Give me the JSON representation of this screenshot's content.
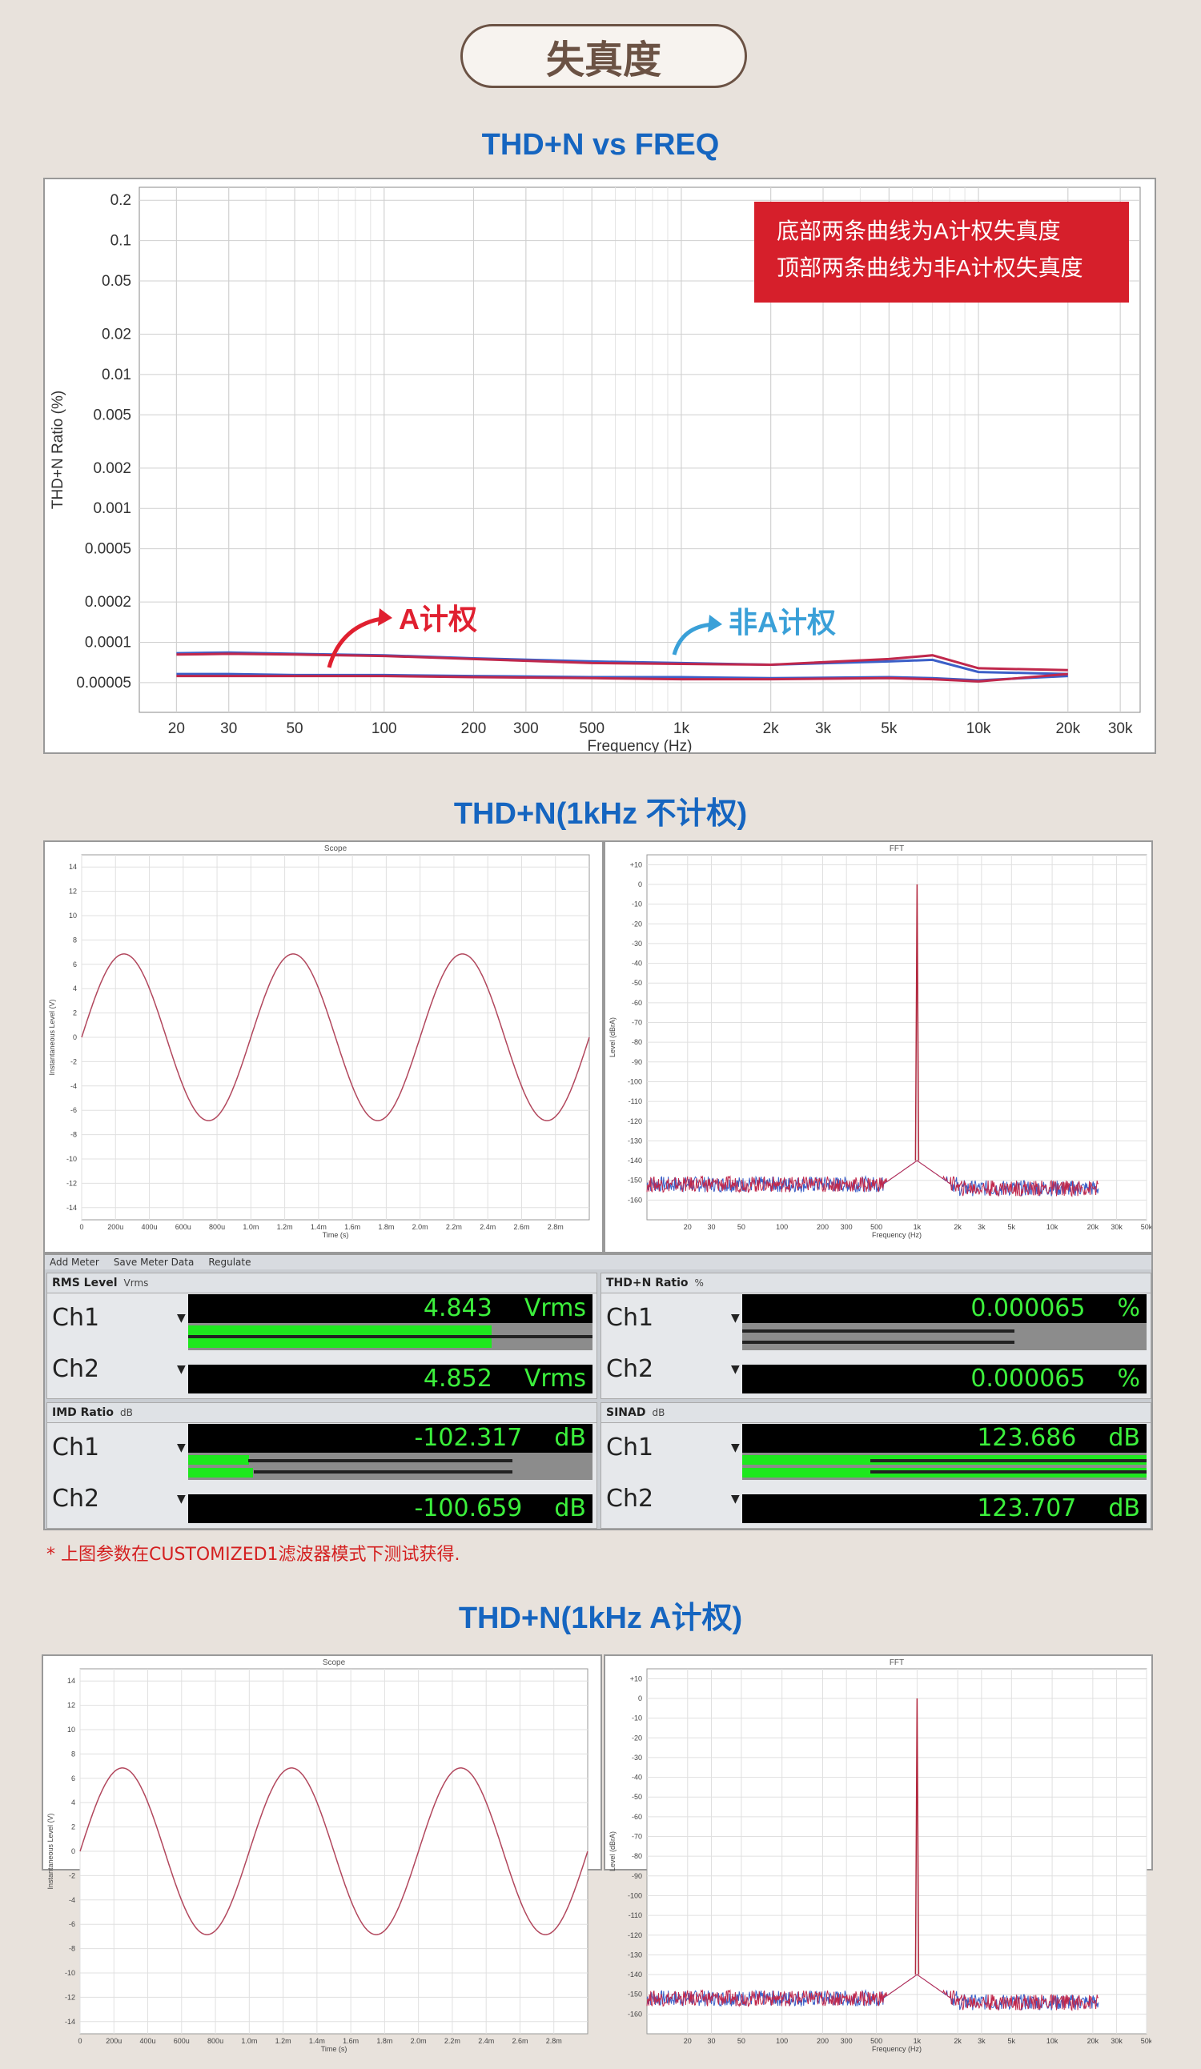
{
  "page_title": "失真度",
  "section1_title": "THD+N vs FREQ",
  "section2_title": "THD+N(1kHz 不计权)",
  "section3_title": "THD+N(1kHz A计权)",
  "footnote": "* 上图参数在CUSTOMIZED1滤波器模式下测试获得.",
  "colors": {
    "title_blue": "#1565c0",
    "red": "#d42020",
    "blue_curve": "#3b5fc8",
    "red_curve": "#c0284c",
    "meter_green": "#3cf03c"
  },
  "chart_data": [
    {
      "type": "line",
      "title": "THD+N vs FREQ",
      "xlabel": "Frequency (Hz)",
      "ylabel": "THD+N Ratio (%)",
      "x_scale": "log",
      "y_scale": "log",
      "xlim": [
        15,
        35000
      ],
      "ylim": [
        3e-05,
        0.25
      ],
      "x_ticks": [
        20,
        30,
        50,
        100,
        200,
        300,
        500,
        1000,
        2000,
        3000,
        5000,
        10000,
        20000,
        30000
      ],
      "x_tick_labels": [
        "20",
        "30",
        "50",
        "100",
        "200",
        "300",
        "500",
        "1k",
        "2k",
        "3k",
        "5k",
        "10k",
        "20k",
        "30k"
      ],
      "y_ticks": [
        0.2,
        0.1,
        0.05,
        0.02,
        0.01,
        0.005,
        0.002,
        0.001,
        0.0005,
        0.0002,
        0.0001,
        5e-05
      ],
      "y_tick_labels": [
        "0.2",
        "0.1",
        "0.05",
        "0.02",
        "0.01",
        "0.005",
        "0.002",
        "0.001",
        "0.0005",
        "0.0002",
        "0.0001",
        "0.00005"
      ],
      "grid": true,
      "legend_box": [
        "底部两条曲线为A计权失真度",
        "顶部两条曲线为非A计权失真度"
      ],
      "annotations": [
        "A计权",
        "非A计权"
      ],
      "x": [
        20,
        30,
        50,
        100,
        200,
        500,
        1000,
        2000,
        5000,
        7000,
        10000,
        20000
      ],
      "series": [
        {
          "color": "#3b5fc8",
          "values": [
            8.3e-05,
            8.4e-05,
            8.2e-05,
            8e-05,
            7.6e-05,
            7.2e-05,
            7e-05,
            6.8e-05,
            7.2e-05,
            7.4e-05,
            6e-05,
            5.8e-05
          ]
        },
        {
          "color": "#c0284c",
          "values": [
            8.1e-05,
            8.2e-05,
            8.1e-05,
            7.9e-05,
            7.5e-05,
            7e-05,
            6.9e-05,
            6.8e-05,
            7.5e-05,
            8e-05,
            6.4e-05,
            6.2e-05
          ]
        },
        {
          "color": "#3b5fc8",
          "values": [
            5.8e-05,
            5.8e-05,
            5.7e-05,
            5.7e-05,
            5.6e-05,
            5.5e-05,
            5.5e-05,
            5.4e-05,
            5.5e-05,
            5.4e-05,
            5.2e-05,
            5.6e-05
          ]
        },
        {
          "color": "#c0284c",
          "values": [
            5.6e-05,
            5.6e-05,
            5.6e-05,
            5.6e-05,
            5.5e-05,
            5.4e-05,
            5.3e-05,
            5.3e-05,
            5.4e-05,
            5.3e-05,
            5.1e-05,
            5.8e-05
          ]
        }
      ]
    },
    {
      "type": "line",
      "title": "Scope",
      "xlabel": "Time (s)",
      "ylabel": "Instantaneous Level (V)",
      "xlim": [
        0,
        0.003
      ],
      "ylim": [
        -15,
        15
      ],
      "x_tick_labels": [
        "0",
        "200u",
        "400u",
        "600u",
        "800u",
        "1.0m",
        "1.2m",
        "1.4m",
        "1.6m",
        "1.8m",
        "2.0m",
        "2.2m",
        "2.4m",
        "2.6m",
        "2.8m"
      ],
      "y_tick_labels": [
        "14",
        "12",
        "10",
        "8",
        "6",
        "4",
        "2",
        "0",
        "-2",
        "-4",
        "-6",
        "-8",
        "-10",
        "-12",
        "-14"
      ],
      "waveform": {
        "shape": "sine",
        "frequency_hz": 1000,
        "amplitude_v": 6.85
      }
    },
    {
      "type": "line",
      "title": "FFT",
      "xlabel": "Frequency (Hz)",
      "ylabel": "Level (dBrA)",
      "x_scale": "log",
      "xlim": [
        10,
        50000
      ],
      "ylim": [
        -170,
        15
      ],
      "x_tick_labels": [
        "20",
        "30",
        "50",
        "100",
        "200",
        "300",
        "500",
        "1k",
        "2k",
        "3k",
        "5k",
        "10k",
        "20k",
        "30k",
        "50k"
      ],
      "y_tick_labels": [
        "+10",
        "0",
        "-10",
        "-20",
        "-30",
        "-40",
        "-50",
        "-60",
        "-70",
        "-80",
        "-90",
        "-100",
        "-110",
        "-120",
        "-130",
        "-140",
        "-150",
        "-160"
      ],
      "peak": {
        "frequency_hz": 1000,
        "level": 0
      },
      "noise_floor": -152
    }
  ],
  "meter_toolbar": {
    "add_meter": "Add Meter",
    "save_meter_data": "Save Meter Data",
    "regulate": "Regulate"
  },
  "meters": [
    {
      "name": "RMS Level",
      "unit_sel": "Vrms",
      "ch1": {
        "label": "Ch1",
        "value": "4.843",
        "unit": "Vrms",
        "level": 0.75
      },
      "ch2": {
        "label": "Ch2",
        "value": "4.852",
        "unit": "Vrms",
        "level": 0.75
      }
    },
    {
      "name": "THD+N Ratio",
      "unit_sel": "%",
      "ch1": {
        "label": "Ch1",
        "value": "0.000065",
        "unit": "%",
        "level": 0.0
      },
      "ch2": {
        "label": "Ch2",
        "value": "0.000065",
        "unit": "%",
        "level": 0.0
      }
    },
    {
      "name": "IMD Ratio",
      "unit_sel": "dB",
      "ch1": {
        "label": "Ch1",
        "value": "-102.317",
        "unit": "dB",
        "level": 0.15
      },
      "ch2": {
        "label": "Ch2",
        "value": "-100.659",
        "unit": "dB",
        "level": 0.16
      }
    },
    {
      "name": "SINAD",
      "unit_sel": "dB",
      "ch1": {
        "label": "Ch1",
        "value": "123.686",
        "unit": "dB",
        "level": 1.0
      },
      "ch2": {
        "label": "Ch2",
        "value": "123.707",
        "unit": "dB",
        "level": 1.0
      }
    }
  ]
}
